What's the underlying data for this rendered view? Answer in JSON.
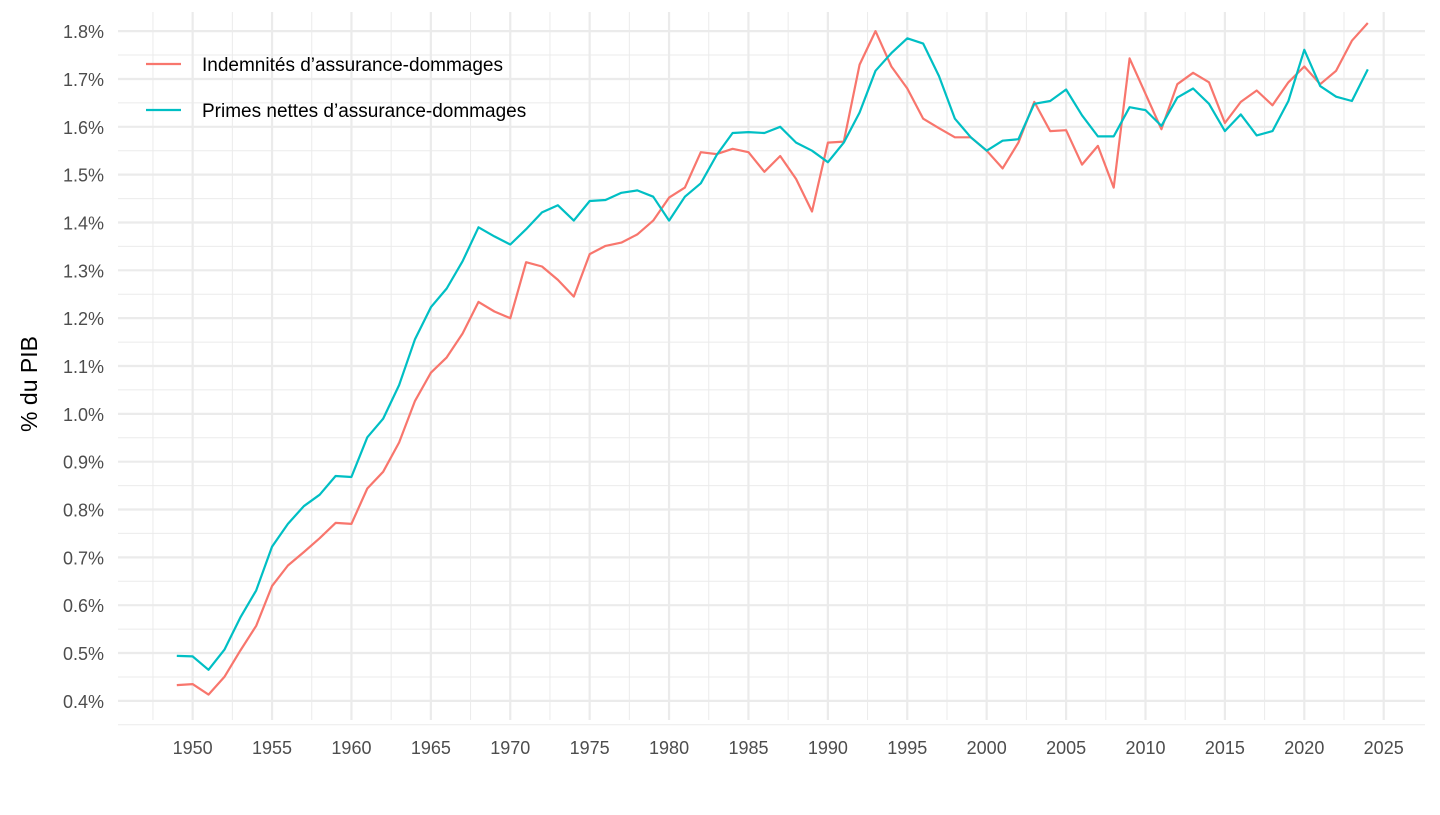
{
  "chart_data": {
    "type": "line",
    "title": "",
    "xlabel": "",
    "ylabel": "% du PIB",
    "xlim": [
      1945.3,
      2027.6
    ],
    "ylim": [
      0.36,
      1.84
    ],
    "grid": true,
    "legend_position": "top-left",
    "x_ticks": [
      1950,
      1955,
      1960,
      1965,
      1970,
      1975,
      1980,
      1985,
      1990,
      1995,
      2000,
      2005,
      2010,
      2015,
      2020,
      2025
    ],
    "y_ticks": [
      0.4,
      0.5,
      0.6,
      0.7,
      0.8,
      0.9,
      1.0,
      1.1,
      1.2,
      1.3,
      1.4,
      1.5,
      1.6,
      1.7,
      1.8
    ],
    "y_tick_labels": [
      "0.4%",
      "0.5%",
      "0.6%",
      "0.7%",
      "0.8%",
      "0.9%",
      "1.0%",
      "1.1%",
      "1.2%",
      "1.3%",
      "1.4%",
      "1.5%",
      "1.6%",
      "1.7%",
      "1.8%"
    ],
    "x": [
      1949,
      1950,
      1951,
      1952,
      1953,
      1954,
      1955,
      1956,
      1957,
      1958,
      1959,
      1960,
      1961,
      1962,
      1963,
      1964,
      1965,
      1966,
      1967,
      1968,
      1969,
      1970,
      1971,
      1972,
      1973,
      1974,
      1975,
      1976,
      1977,
      1978,
      1979,
      1980,
      1981,
      1982,
      1983,
      1984,
      1985,
      1986,
      1987,
      1988,
      1989,
      1990,
      1991,
      1992,
      1993,
      1994,
      1995,
      1996,
      1997,
      1998,
      1999,
      2000,
      2001,
      2002,
      2003,
      2004,
      2005,
      2006,
      2007,
      2008,
      2009,
      2010,
      2011,
      2012,
      2013,
      2014,
      2015,
      2016,
      2017,
      2018,
      2019,
      2020,
      2021,
      2022,
      2023,
      2024
    ],
    "series": [
      {
        "name": "Indemnités d’assurance-dommages",
        "color": "#F8766D",
        "values": [
          0.433,
          0.435,
          0.413,
          0.45,
          0.505,
          0.557,
          0.64,
          0.683,
          0.711,
          0.74,
          0.772,
          0.77,
          0.844,
          0.879,
          0.94,
          1.027,
          1.086,
          1.118,
          1.168,
          1.234,
          1.214,
          1.2,
          1.317,
          1.308,
          1.28,
          1.245,
          1.334,
          1.351,
          1.358,
          1.375,
          1.404,
          1.452,
          1.473,
          1.547,
          1.543,
          1.554,
          1.547,
          1.506,
          1.539,
          1.491,
          1.423,
          1.567,
          1.569,
          1.73,
          1.8,
          1.726,
          1.68,
          1.617,
          1.597,
          1.578,
          1.578,
          1.55,
          1.513,
          1.567,
          1.652,
          1.591,
          1.593,
          1.521,
          1.56,
          1.473,
          1.743,
          1.669,
          1.595,
          1.689,
          1.713,
          1.693,
          1.608,
          1.652,
          1.676,
          1.645,
          1.693,
          1.726,
          1.689,
          1.717,
          1.78,
          1.817
        ]
      },
      {
        "name": "Primes nettes d’assurance-dommages",
        "color": "#00BFC4",
        "values": [
          0.494,
          0.493,
          0.465,
          0.507,
          0.574,
          0.631,
          0.722,
          0.77,
          0.807,
          0.831,
          0.87,
          0.868,
          0.951,
          0.99,
          1.06,
          1.156,
          1.223,
          1.262,
          1.319,
          1.39,
          1.371,
          1.354,
          1.386,
          1.421,
          1.436,
          1.404,
          1.445,
          1.447,
          1.462,
          1.467,
          1.454,
          1.404,
          1.454,
          1.482,
          1.541,
          1.587,
          1.589,
          1.587,
          1.6,
          1.567,
          1.55,
          1.526,
          1.567,
          1.63,
          1.717,
          1.754,
          1.785,
          1.774,
          1.706,
          1.617,
          1.578,
          1.55,
          1.571,
          1.574,
          1.648,
          1.654,
          1.678,
          1.624,
          1.58,
          1.58,
          1.641,
          1.635,
          1.602,
          1.661,
          1.68,
          1.648,
          1.591,
          1.626,
          1.582,
          1.591,
          1.654,
          1.761,
          1.685,
          1.663,
          1.654,
          1.72
        ]
      }
    ]
  }
}
